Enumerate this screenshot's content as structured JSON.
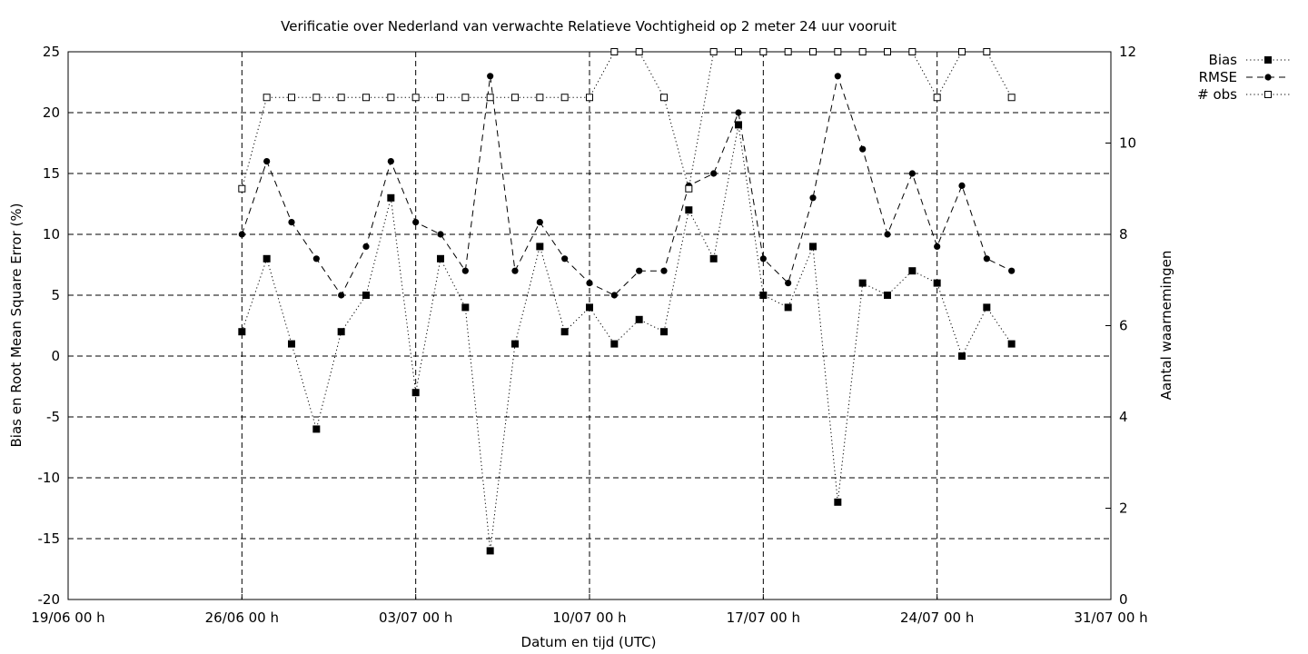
{
  "chart_data": {
    "type": "line",
    "title": "Verificatie over Nederland van verwachte Relatieve Vochtigheid op 2 meter 24 uur vooruit",
    "xlabel": "Datum en tijd (UTC)",
    "ylabel": "Bias en Root Mean Square Error (%)",
    "y2label": "Aantal waarnemingen",
    "xlim_days": [
      0,
      42
    ],
    "ylim": [
      -20,
      25
    ],
    "y2lim": [
      0,
      12
    ],
    "x_ticks": [
      {
        "day": 0,
        "label": "19/06 00 h"
      },
      {
        "day": 7,
        "label": "26/06 00 h"
      },
      {
        "day": 14,
        "label": "03/07 00 h"
      },
      {
        "day": 21,
        "label": "10/07 00 h"
      },
      {
        "day": 28,
        "label": "17/07 00 h"
      },
      {
        "day": 35,
        "label": "24/07 00 h"
      },
      {
        "day": 42,
        "label": "31/07 00 h"
      }
    ],
    "y_ticks": [
      "25",
      "20",
      "15",
      "10",
      "5",
      "0",
      "-5",
      "-10",
      "-15",
      "-20"
    ],
    "y2_ticks": [
      "12",
      "10",
      "8",
      "6",
      "4",
      "2",
      "0"
    ],
    "grid": true,
    "legend_position": "top-right-outside",
    "x_days": [
      7,
      8,
      9,
      10,
      11,
      12,
      13,
      14,
      15,
      16,
      17,
      18,
      19,
      20,
      21,
      22,
      23,
      24,
      25,
      26,
      27,
      28,
      29,
      30,
      31,
      32,
      33,
      34,
      35,
      36,
      37,
      38
    ],
    "series": [
      {
        "name": "Bias",
        "axis": "left",
        "style": "dotted",
        "marker": "filled-square",
        "values": [
          2,
          8,
          1,
          -6,
          2,
          5,
          13,
          -3,
          8,
          4,
          -16,
          1,
          9,
          2,
          4,
          1,
          3,
          2,
          12,
          8,
          19,
          5,
          4,
          9,
          -12,
          6,
          5,
          7,
          6,
          0,
          4,
          1
        ]
      },
      {
        "name": "RMSE",
        "axis": "left",
        "style": "dashed",
        "marker": "filled-circle",
        "values": [
          10,
          16,
          11,
          8,
          5,
          9,
          16,
          11,
          10,
          7,
          23,
          7,
          11,
          8,
          6,
          5,
          7,
          7,
          14,
          15,
          20,
          8,
          6,
          13,
          23,
          17,
          10,
          15,
          9,
          14,
          8,
          7
        ]
      },
      {
        "name": "# obs",
        "axis": "right",
        "style": "dotted",
        "marker": "open-square",
        "values": [
          9,
          11,
          11,
          11,
          11,
          11,
          11,
          11,
          11,
          11,
          11,
          11,
          11,
          11,
          11,
          12,
          12,
          11,
          9,
          12,
          12,
          12,
          12,
          12,
          12,
          12,
          12,
          12,
          11,
          12,
          12,
          11
        ]
      }
    ]
  }
}
